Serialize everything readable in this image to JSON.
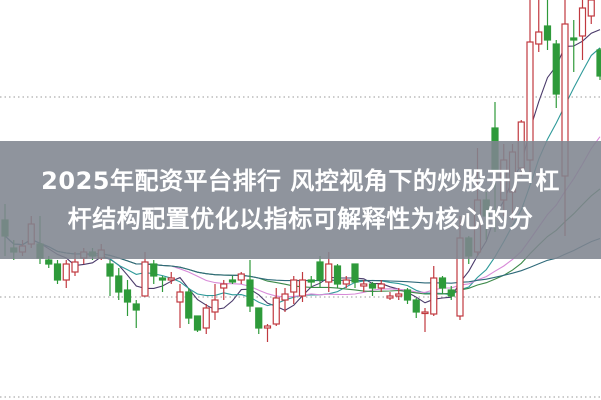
{
  "title": {
    "line1": "2025年配资平台排行 风控视角下的炒股开户杠",
    "line2": "杆结构配置优化以指标可解释性为核心的分"
  },
  "chart_data": {
    "type": "candlestick",
    "title": "",
    "xlabel": "",
    "ylabel": "",
    "grid": "horizontal dotted",
    "ylim": [
      0,
      100
    ],
    "gridlines": [
      0.75,
      25.75,
      75.75
    ],
    "up_color": "#c0393f",
    "down_color": "#2e9a3a",
    "up_style": "hollow",
    "ma_colors": [
      "#4a3a6a",
      "#2f9a9a",
      "#d88ad8",
      "#3d8a4a",
      "#2f6a7a"
    ],
    "ma_periods": [
      5,
      10,
      20,
      30,
      60
    ],
    "candles": [
      [
        45,
        49,
        36,
        41
      ],
      [
        38,
        40,
        35,
        37
      ],
      [
        37,
        40,
        36,
        38.5
      ],
      [
        39,
        46,
        38,
        44
      ],
      [
        39,
        46,
        34,
        35.5
      ],
      [
        35,
        36,
        33,
        34
      ],
      [
        34,
        35,
        29,
        30
      ],
      [
        30,
        35,
        28,
        34
      ],
      [
        32,
        37,
        31,
        34.5
      ],
      [
        35.5,
        38,
        34,
        37
      ],
      [
        37,
        38,
        35,
        36
      ],
      [
        35.5,
        39,
        35,
        37.5
      ],
      [
        34,
        35,
        26,
        31
      ],
      [
        31,
        33,
        25,
        27
      ],
      [
        27.5,
        30,
        21,
        24.5
      ],
      [
        24,
        25,
        18,
        22.5
      ],
      [
        26,
        37,
        26,
        34.5
      ],
      [
        34,
        35,
        29,
        31
      ],
      [
        30.5,
        31,
        27,
        30
      ],
      [
        30,
        32,
        29,
        30.5
      ],
      [
        24.5,
        29,
        18,
        27
      ],
      [
        27,
        28,
        19,
        20.5
      ],
      [
        21,
        21,
        17,
        17.5
      ],
      [
        18,
        24,
        16.5,
        23
      ],
      [
        22,
        29,
        20,
        25
      ],
      [
        28,
        30,
        25,
        29
      ],
      [
        30,
        31,
        29,
        29.5
      ],
      [
        30,
        32,
        29,
        31.5
      ],
      [
        30,
        35,
        22,
        23.5
      ],
      [
        23,
        23,
        16.5,
        18
      ],
      [
        18,
        19,
        14.5,
        18.5
      ],
      [
        19,
        28,
        18.5,
        25.5
      ],
      [
        25,
        28,
        22,
        26.5
      ],
      [
        27,
        31,
        24,
        30
      ],
      [
        26,
        32,
        24.5,
        30
      ],
      [
        30,
        31,
        28,
        29.5
      ],
      [
        34.5,
        36,
        28,
        30
      ],
      [
        29.5,
        37,
        27,
        34
      ],
      [
        33.5,
        34,
        28,
        29
      ],
      [
        29,
        31,
        28,
        30
      ],
      [
        34,
        34,
        28,
        29.5
      ],
      [
        28.5,
        30,
        27,
        29
      ],
      [
        29,
        29.5,
        26,
        28
      ],
      [
        28,
        30,
        27,
        29
      ],
      [
        25.5,
        27,
        25,
        26
      ],
      [
        26,
        28,
        25,
        26.5
      ],
      [
        27.5,
        28,
        24,
        25
      ],
      [
        25,
        25.5,
        20.5,
        22
      ],
      [
        21.75,
        23,
        17,
        22
      ],
      [
        21.5,
        33.5,
        21,
        30.5
      ],
      [
        30.5,
        31,
        26.5,
        28
      ],
      [
        27.5,
        28.5,
        25,
        26
      ],
      [
        21,
        46,
        20,
        40.5
      ],
      [
        40.5,
        41,
        34,
        36
      ],
      [
        37,
        63,
        36,
        50
      ],
      [
        50,
        52,
        40,
        46
      ],
      [
        68,
        74.5,
        42,
        57
      ],
      [
        50,
        64,
        46,
        60
      ],
      [
        52,
        64,
        45,
        62
      ],
      [
        58,
        70,
        56,
        69.5
      ],
      [
        60,
        100,
        56,
        89.5
      ],
      [
        89,
        100,
        87,
        92
      ],
      [
        93.5,
        100,
        87.5,
        90
      ],
      [
        89,
        90,
        73,
        76.5
      ],
      [
        56,
        100,
        41,
        94
      ],
      [
        90.5,
        95,
        82,
        90
      ],
      [
        91,
        100,
        85,
        98
      ],
      [
        96,
        100,
        94,
        100
      ],
      [
        87.5,
        88,
        80,
        81
      ]
    ]
  }
}
